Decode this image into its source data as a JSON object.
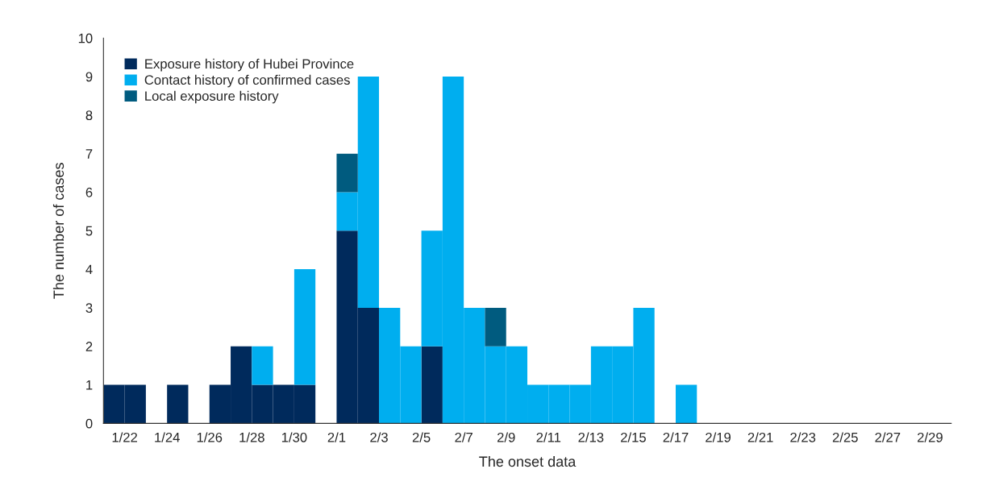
{
  "chart_data": {
    "type": "bar",
    "xlabel": "The onset data",
    "ylabel": "The number of cases",
    "categories": [
      "1/22",
      null,
      "1/24",
      null,
      "1/26",
      null,
      "1/28",
      null,
      "1/30",
      null,
      "2/1",
      null,
      "2/3",
      null,
      "2/5",
      null,
      "2/7",
      null,
      "2/9",
      null,
      "2/11",
      null,
      "2/13",
      null,
      "2/15",
      null,
      "2/17",
      null,
      "2/19",
      null,
      "2/21",
      null,
      "2/23",
      null,
      "2/25",
      null,
      "2/27",
      null,
      "2/29",
      null
    ],
    "series": [
      {
        "name": "Exposure history of Hubei Province",
        "color": "#002a5c",
        "values": [
          1,
          1,
          0,
          1,
          0,
          1,
          2,
          1,
          1,
          1,
          0,
          5,
          3,
          0,
          0,
          2,
          0,
          0,
          0,
          0,
          0,
          0,
          0,
          0,
          0,
          0,
          0,
          0,
          0,
          0,
          0,
          0,
          0,
          0,
          0,
          0,
          0,
          0,
          0,
          0
        ]
      },
      {
        "name": "Contact history of confirmed cases",
        "color": "#00aeef",
        "values": [
          0,
          0,
          0,
          0,
          0,
          0,
          0,
          1,
          0,
          3,
          0,
          1,
          6,
          3,
          2,
          3,
          9,
          3,
          2,
          2,
          1,
          1,
          1,
          2,
          2,
          3,
          0,
          1,
          0,
          0,
          0,
          0,
          0,
          0,
          0,
          0,
          0,
          0,
          0,
          0
        ]
      },
      {
        "name": "Local exposure history",
        "color": "#005b7f",
        "values": [
          0,
          0,
          0,
          0,
          0,
          0,
          0,
          0,
          0,
          0,
          0,
          1,
          0,
          0,
          0,
          0,
          0,
          0,
          1,
          0,
          0,
          0,
          0,
          0,
          0,
          0,
          0,
          0,
          0,
          0,
          0,
          0,
          0,
          0,
          0,
          0,
          0,
          0,
          0,
          0
        ]
      }
    ],
    "stacked": true,
    "ylim": [
      0,
      10
    ],
    "yticks": [
      0,
      1,
      2,
      3,
      4,
      5,
      6,
      7,
      8,
      9,
      10
    ],
    "legend": "top left"
  }
}
